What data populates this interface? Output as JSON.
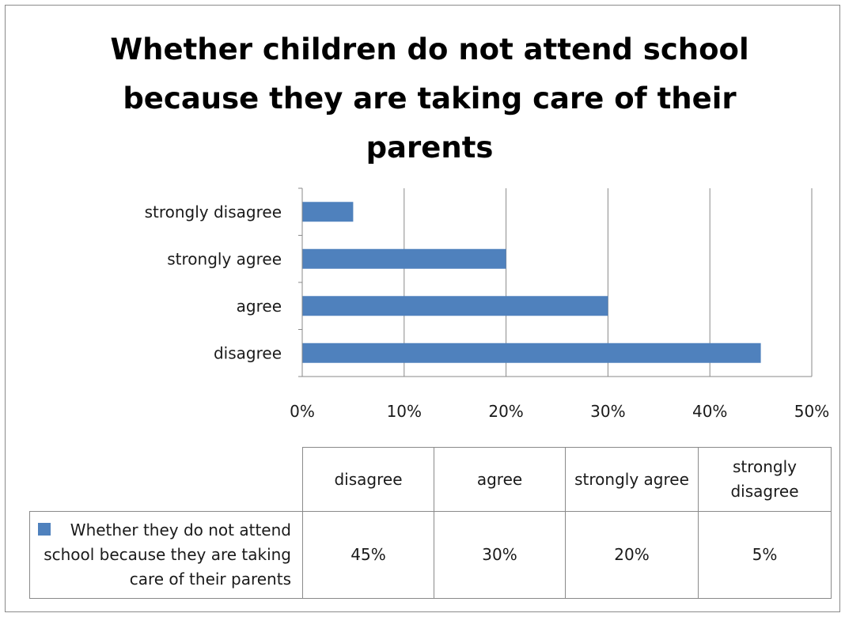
{
  "chart_data": {
    "type": "bar",
    "orientation": "horizontal",
    "title": "Whether children do not attend school because they are taking care of their parents",
    "categories": [
      "disagree",
      "agree",
      "strongly agree",
      "strongly disagree"
    ],
    "series": [
      {
        "name": "Whether they do not attend school because they are taking care of their parents",
        "values": [
          45,
          30,
          20,
          5
        ],
        "color": "#4f81bd"
      }
    ],
    "value_labels": [
      "45%",
      "30%",
      "20%",
      "5%"
    ],
    "xlim": [
      0,
      50
    ],
    "xticks": [
      "0%",
      "10%",
      "20%",
      "30%",
      "40%",
      "50%"
    ],
    "xlabel": "",
    "ylabel": "",
    "grid": "vertical",
    "legend": "data-table",
    "table": {
      "headers": [
        "disagree",
        "agree",
        "strongly agree",
        "strongly disagree"
      ],
      "values": [
        "45%",
        "30%",
        "20%",
        "5%"
      ]
    }
  }
}
